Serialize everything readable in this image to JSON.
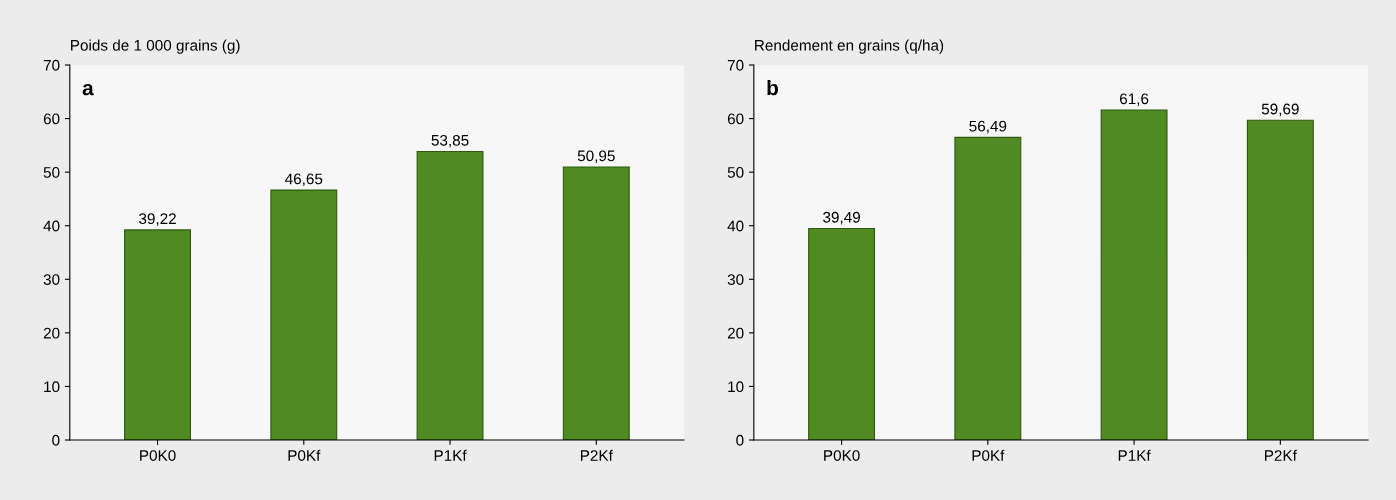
{
  "chart_data": [
    {
      "type": "bar",
      "title": "a",
      "ylabel": "Poids de 1 000 grains (g)",
      "categories": [
        "P0K0",
        "P0Kf",
        "P1Kf",
        "P2Kf"
      ],
      "values": [
        39.22,
        46.65,
        53.85,
        50.95
      ],
      "value_labels": [
        "39,22",
        "46,65",
        "53,85",
        "50,95"
      ],
      "color": "#4f8a23",
      "ylim": [
        0,
        70
      ],
      "yticks": [
        0,
        10,
        20,
        30,
        40,
        50,
        60,
        70
      ]
    },
    {
      "type": "bar",
      "title": "b",
      "ylabel": "Rendement en grains (q/ha)",
      "categories": [
        "P0K0",
        "P0Kf",
        "P1Kf",
        "P2Kf"
      ],
      "values": [
        39.49,
        56.49,
        61.6,
        59.69
      ],
      "value_labels": [
        "39,49",
        "56,49",
        "61,6",
        "59,69"
      ],
      "color": "#4f8a23",
      "ylim": [
        0,
        70
      ],
      "yticks": [
        0,
        10,
        20,
        30,
        40,
        50,
        60,
        70
      ]
    }
  ]
}
